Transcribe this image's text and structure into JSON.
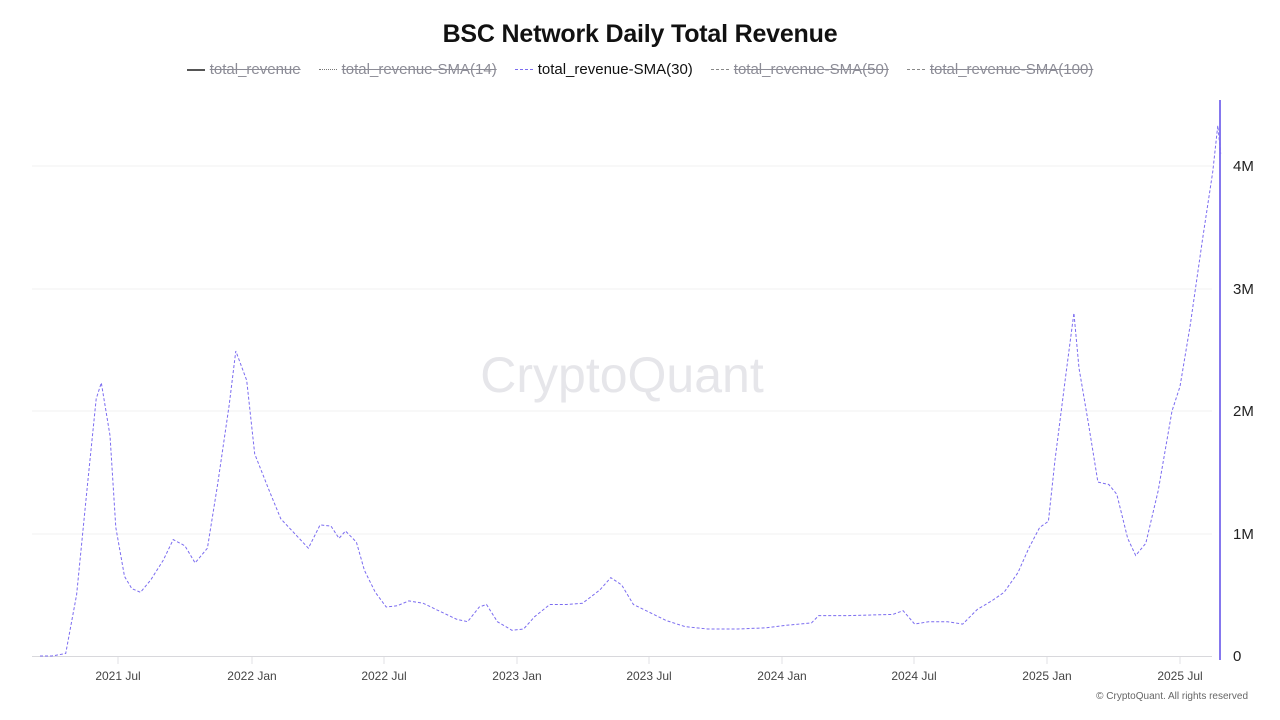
{
  "title": "BSC Network Daily Total Revenue",
  "legend": [
    {
      "label": "total_revenue",
      "style": "solid",
      "enabled": false
    },
    {
      "label": "total_revenue-SMA(14)",
      "style": "dotted",
      "enabled": false
    },
    {
      "label": "total_revenue-SMA(30)",
      "style": "dashed",
      "enabled": true
    },
    {
      "label": "total_revenue-SMA(50)",
      "style": "dashdot",
      "enabled": false
    },
    {
      "label": "total_revenue-SMA(100)",
      "style": "dashdot",
      "enabled": false
    }
  ],
  "watermark": "CryptoQuant",
  "copyright": "© CryptoQuant. All rights reserved",
  "colors": {
    "series": "#7b6cf0",
    "axis_line": "#8577ee",
    "grid": "#f2f2f2",
    "legend_disabled": "#8c8c96"
  },
  "chart_data": {
    "type": "line",
    "title": "BSC Network Daily Total Revenue",
    "xlabel": "",
    "ylabel": "",
    "y_axis_position": "right",
    "ylim": [
      0,
      4500000
    ],
    "yticks": [
      "0",
      "1M",
      "2M",
      "3M",
      "4M"
    ],
    "xticks": [
      "2021 Jul",
      "2022 Jan",
      "2022 Jul",
      "2023 Jan",
      "2023 Jul",
      "2024 Jan",
      "2024 Jul",
      "2025 Jan",
      "2025 Jul"
    ],
    "grid": true,
    "legend_position": "top",
    "series": [
      {
        "name": "total_revenue-SMA(30)",
        "style": "dashed",
        "visible": true,
        "points": [
          [
            "2021-03",
            0
          ],
          [
            "2021-04",
            0
          ],
          [
            "2021-04-20",
            20000
          ],
          [
            "2021-05-05",
            500000
          ],
          [
            "2021-05-20",
            1400000
          ],
          [
            "2021-06-01",
            2100000
          ],
          [
            "2021-06-08",
            2230000
          ],
          [
            "2021-06-20",
            1800000
          ],
          [
            "2021-06-28",
            1050000
          ],
          [
            "2021-07-10",
            650000
          ],
          [
            "2021-07-20",
            550000
          ],
          [
            "2021-08-01",
            520000
          ],
          [
            "2021-08-15",
            620000
          ],
          [
            "2021-09-01",
            780000
          ],
          [
            "2021-09-15",
            950000
          ],
          [
            "2021-10-01",
            900000
          ],
          [
            "2021-10-15",
            760000
          ],
          [
            "2021-11-01",
            880000
          ],
          [
            "2021-11-15",
            1400000
          ],
          [
            "2021-12-01",
            2050000
          ],
          [
            "2021-12-10",
            2490000
          ],
          [
            "2021-12-25",
            2250000
          ],
          [
            "2022-01-05",
            1650000
          ],
          [
            "2022-01-25",
            1350000
          ],
          [
            "2022-02-10",
            1120000
          ],
          [
            "2022-03-01",
            1000000
          ],
          [
            "2022-03-20",
            880000
          ],
          [
            "2022-04-05",
            1070000
          ],
          [
            "2022-04-20",
            1060000
          ],
          [
            "2022-05-01",
            960000
          ],
          [
            "2022-05-10",
            1020000
          ],
          [
            "2022-05-25",
            930000
          ],
          [
            "2022-06-05",
            700000
          ],
          [
            "2022-06-20",
            520000
          ],
          [
            "2022-07-05",
            400000
          ],
          [
            "2022-07-20",
            410000
          ],
          [
            "2022-08-05",
            450000
          ],
          [
            "2022-08-25",
            430000
          ],
          [
            "2022-09-15",
            370000
          ],
          [
            "2022-10-10",
            300000
          ],
          [
            "2022-10-25",
            280000
          ],
          [
            "2022-11-10",
            400000
          ],
          [
            "2022-11-20",
            420000
          ],
          [
            "2022-12-05",
            280000
          ],
          [
            "2022-12-25",
            210000
          ],
          [
            "2023-01-10",
            220000
          ],
          [
            "2023-01-25",
            320000
          ],
          [
            "2023-02-15",
            420000
          ],
          [
            "2023-03-10",
            420000
          ],
          [
            "2023-04-01",
            430000
          ],
          [
            "2023-04-25",
            540000
          ],
          [
            "2023-05-10",
            640000
          ],
          [
            "2023-05-25",
            580000
          ],
          [
            "2023-06-10",
            420000
          ],
          [
            "2023-07-01",
            360000
          ],
          [
            "2023-07-25",
            290000
          ],
          [
            "2023-08-20",
            240000
          ],
          [
            "2023-09-20",
            220000
          ],
          [
            "2023-11-01",
            220000
          ],
          [
            "2023-12-10",
            230000
          ],
          [
            "2024-01-05",
            250000
          ],
          [
            "2024-02-10",
            270000
          ],
          [
            "2024-02-20",
            330000
          ],
          [
            "2024-04-01",
            330000
          ],
          [
            "2024-06-01",
            340000
          ],
          [
            "2024-06-15",
            370000
          ],
          [
            "2024-07-01",
            260000
          ],
          [
            "2024-07-20",
            280000
          ],
          [
            "2024-08-15",
            280000
          ],
          [
            "2024-09-05",
            260000
          ],
          [
            "2024-09-25",
            380000
          ],
          [
            "2024-10-15",
            450000
          ],
          [
            "2024-11-01",
            520000
          ],
          [
            "2024-11-20",
            680000
          ],
          [
            "2024-12-05",
            880000
          ],
          [
            "2024-12-20",
            1050000
          ],
          [
            "2025-01-01",
            1100000
          ],
          [
            "2025-01-10",
            1600000
          ],
          [
            "2025-01-25",
            2300000
          ],
          [
            "2025-02-05",
            2800000
          ],
          [
            "2025-02-12",
            2350000
          ],
          [
            "2025-02-25",
            1900000
          ],
          [
            "2025-03-10",
            1420000
          ],
          [
            "2025-03-25",
            1400000
          ],
          [
            "2025-04-05",
            1320000
          ],
          [
            "2025-04-20",
            960000
          ],
          [
            "2025-05-01",
            820000
          ],
          [
            "2025-05-15",
            920000
          ],
          [
            "2025-06-01",
            1350000
          ],
          [
            "2025-06-20",
            2000000
          ],
          [
            "2025-07-01",
            2200000
          ],
          [
            "2025-07-15",
            2700000
          ],
          [
            "2025-08-01",
            3400000
          ],
          [
            "2025-08-15",
            3950000
          ],
          [
            "2025-08-22",
            4330000
          ],
          [
            "2025-08-26",
            4100000
          ]
        ]
      }
    ],
    "hidden_series": [
      "total_revenue",
      "total_revenue-SMA(14)",
      "total_revenue-SMA(50)",
      "total_revenue-SMA(100)"
    ]
  }
}
